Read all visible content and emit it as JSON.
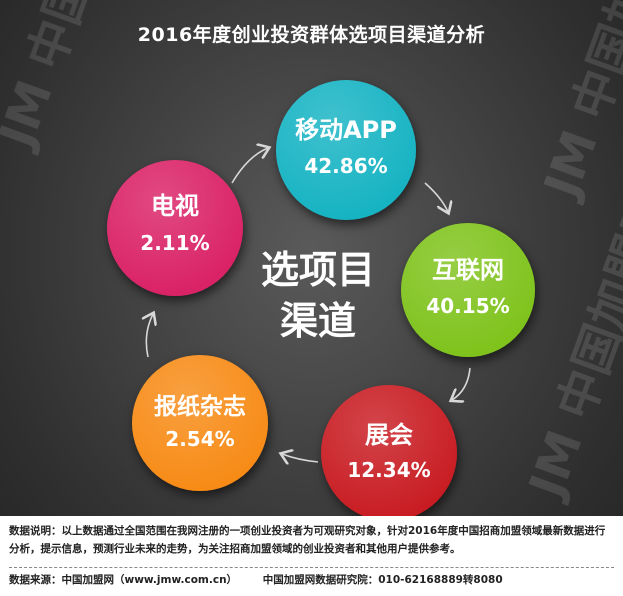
{
  "title": "2016年度创业投资群体选项目渠道分析",
  "center_label": [
    "选项目",
    "渠道"
  ],
  "chart_data": {
    "type": "pie",
    "title": "2016年度创业投资群体选项目渠道分析",
    "categories": [
      "移动APP",
      "互联网",
      "展会",
      "报纸杂志",
      "电视"
    ],
    "values": [
      42.86,
      40.15,
      12.34,
      2.54,
      2.11
    ],
    "value_labels": [
      "42.86%",
      "40.15%",
      "12.34%",
      "2.54%",
      "2.11%"
    ],
    "colors": [
      "#19b3c3",
      "#7fc31c",
      "#c81d23",
      "#f78b16",
      "#da2466"
    ]
  },
  "footer": {
    "note": "数据说明：以上数据通过全国范围在我网注册的一项创业投资者为可观研究对象，针对2016年度中国招商加盟领域最新数据进行分析，提示信息，预测行业未来的走势，为关注招商加盟领域的创业投资者和其他用户提供参考。",
    "source": "数据来源：中国加盟网（www.jmw.com.cn）",
    "institute": "中国加盟网数据研究院：010-62168889转8080"
  },
  "watermark": "JM 中国加盟网 www.jmw.com.cn"
}
